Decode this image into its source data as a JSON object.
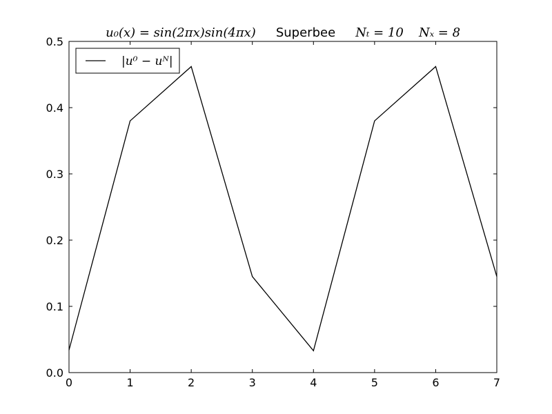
{
  "chart_data": {
    "type": "line",
    "title": {
      "formula": "u₀(x) = sin(2πx)sin(4πx)",
      "scheme": "Superbee",
      "nt": "Nₜ = 10",
      "nx": "Nₓ = 8"
    },
    "xlabel": "",
    "ylabel": "",
    "xlim": [
      0,
      7
    ],
    "ylim": [
      0,
      0.5
    ],
    "x_ticks": [
      0,
      1,
      2,
      3,
      4,
      5,
      6,
      7
    ],
    "y_ticks": [
      0.0,
      0.1,
      0.2,
      0.3,
      0.4,
      0.5
    ],
    "x_tick_labels": [
      "0",
      "1",
      "2",
      "3",
      "4",
      "5",
      "6",
      "7"
    ],
    "y_tick_labels": [
      "0.0",
      "0.1",
      "0.2",
      "0.3",
      "0.4",
      "0.5"
    ],
    "grid": false,
    "legend": {
      "placement": "top-left"
    },
    "series": [
      {
        "name": "|u⁰ − uᴺ|",
        "color": "#000000",
        "x": [
          0,
          1,
          2,
          3,
          4,
          5,
          6,
          7
        ],
        "y": [
          0.034,
          0.38,
          0.462,
          0.145,
          0.033,
          0.38,
          0.462,
          0.145
        ]
      }
    ]
  }
}
